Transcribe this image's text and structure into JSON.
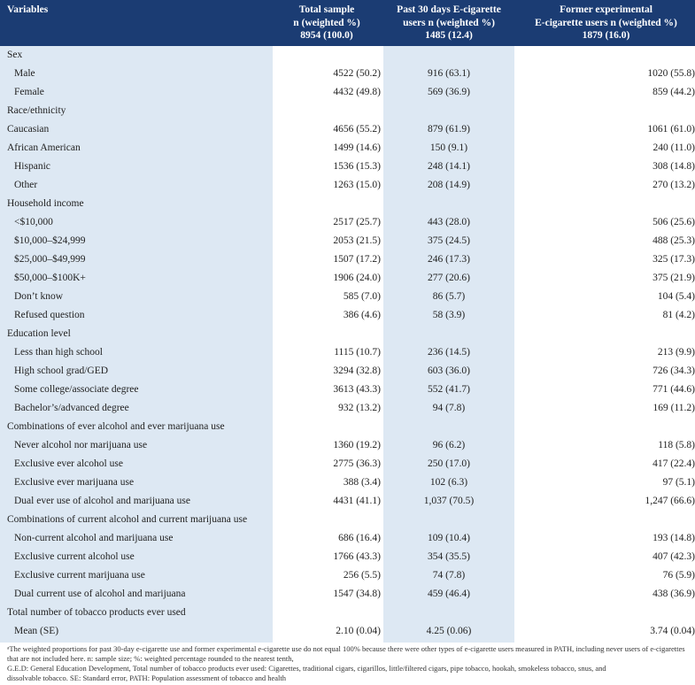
{
  "header": {
    "variables": "Variables",
    "total": [
      "Total sample",
      "n (weighted %)",
      "8954 (100.0)"
    ],
    "past30": [
      "Past 30 days E-cigarette",
      "users n (weighted %)",
      "1485 (12.4)"
    ],
    "former": [
      "Former experimental",
      "E-cigarette users n (weighted %)",
      "1879 (16.0)"
    ]
  },
  "rows": [
    {
      "label": "Sex",
      "indent": false,
      "v": [
        "",
        "",
        ""
      ]
    },
    {
      "label": "Male",
      "indent": true,
      "v": [
        "4522 (50.2)",
        "916 (63.1)",
        "1020 (55.8)"
      ]
    },
    {
      "label": "Female",
      "indent": true,
      "v": [
        "4432 (49.8)",
        "569 (36.9)",
        "859 (44.2)"
      ]
    },
    {
      "label": "Race/ethnicity",
      "indent": false,
      "v": [
        "",
        "",
        ""
      ]
    },
    {
      "label": "Caucasian",
      "indent": false,
      "v": [
        "4656 (55.2)",
        "879 (61.9)",
        "1061 (61.0)"
      ]
    },
    {
      "label": "African American",
      "indent": false,
      "v": [
        "1499 (14.6)",
        "150 (9.1)",
        "240 (11.0)"
      ]
    },
    {
      "label": "Hispanic",
      "indent": true,
      "v": [
        "1536 (15.3)",
        "248 (14.1)",
        "308 (14.8)"
      ]
    },
    {
      "label": "Other",
      "indent": true,
      "v": [
        "1263 (15.0)",
        "208 (14.9)",
        "270 (13.2)"
      ]
    },
    {
      "label": "Household income",
      "indent": false,
      "v": [
        "",
        "",
        ""
      ]
    },
    {
      "label": "<$10,000",
      "indent": true,
      "v": [
        "2517 (25.7)",
        "443 (28.0)",
        "506 (25.6)"
      ]
    },
    {
      "label": "$10,000–$24,999",
      "indent": true,
      "v": [
        "2053 (21.5)",
        "375 (24.5)",
        "488 (25.3)"
      ]
    },
    {
      "label": "$25,000–$49,999",
      "indent": true,
      "v": [
        "1507 (17.2)",
        "246 (17.3)",
        "325 (17.3)"
      ]
    },
    {
      "label": "$50,000–$100K+",
      "indent": true,
      "v": [
        "1906 (24.0)",
        "277 (20.6)",
        "375 (21.9)"
      ]
    },
    {
      "label": "Don’t know",
      "indent": true,
      "v": [
        "585 (7.0)",
        "86 (5.7)",
        "104 (5.4)"
      ]
    },
    {
      "label": "Refused question",
      "indent": true,
      "v": [
        "386 (4.6)",
        "58 (3.9)",
        "81 (4.2)"
      ]
    },
    {
      "label": "Education level",
      "indent": false,
      "v": [
        "",
        "",
        ""
      ]
    },
    {
      "label": "Less than high school",
      "indent": true,
      "v": [
        "1115 (10.7)",
        "236 (14.5)",
        "213 (9.9)"
      ]
    },
    {
      "label": "High school grad/GED",
      "indent": true,
      "v": [
        "3294 (32.8)",
        "603 (36.0)",
        "726 (34.3)"
      ]
    },
    {
      "label": "Some college/associate degree",
      "indent": true,
      "v": [
        "3613 (43.3)",
        "552 (41.7)",
        "771 (44.6)"
      ]
    },
    {
      "label": "Bachelor’s/advanced degree",
      "indent": true,
      "v": [
        "932 (13.2)",
        "94 (7.8)",
        "169 (11.2)"
      ]
    },
    {
      "label": "Combinations of ever alcohol and ever marijuana use",
      "indent": false,
      "v": [
        "",
        "",
        ""
      ]
    },
    {
      "label": "Never alcohol nor marijuana use",
      "indent": true,
      "v": [
        "1360 (19.2)",
        "96 (6.2)",
        "118 (5.8)"
      ]
    },
    {
      "label": "Exclusive ever alcohol use",
      "indent": true,
      "v": [
        "2775 (36.3)",
        "250 (17.0)",
        "417 (22.4)"
      ]
    },
    {
      "label": "Exclusive ever marijuana use",
      "indent": true,
      "v": [
        "388 (3.4)",
        "102 (6.3)",
        "97 (5.1)"
      ]
    },
    {
      "label": "Dual ever use of alcohol and marijuana use",
      "indent": true,
      "v": [
        "4431 (41.1)",
        "1,037 (70.5)",
        "1,247 (66.6)"
      ]
    },
    {
      "label": "Combinations of current alcohol and current marijuana use",
      "indent": false,
      "v": [
        "",
        "",
        ""
      ]
    },
    {
      "label": "Non-current alcohol and marijuana use",
      "indent": true,
      "v": [
        "686 (16.4)",
        "109 (10.4)",
        "193 (14.8)"
      ]
    },
    {
      "label": "Exclusive current alcohol use",
      "indent": true,
      "v": [
        "1766 (43.3)",
        "354 (35.5)",
        "407 (42.3)"
      ]
    },
    {
      "label": "Exclusive current marijuana use",
      "indent": true,
      "v": [
        "256 (5.5)",
        "74 (7.8)",
        "76 (5.9)"
      ]
    },
    {
      "label": "Dual current use of alcohol and marijuana",
      "indent": true,
      "v": [
        "1547 (34.8)",
        "459 (46.4)",
        "438 (36.9)"
      ]
    },
    {
      "label": "Total number of tobacco products ever used",
      "indent": false,
      "v": [
        "",
        "",
        ""
      ]
    },
    {
      "label": "Mean (SE)",
      "indent": true,
      "v": [
        "2.10 (0.04)",
        "4.25 (0.06)",
        "3.74 (0.04)"
      ]
    }
  ],
  "notes": [
    "ᵃThe weighted proportions for past 30-day e-cigarette use and former experimental e-cigarette use do not equal 100% because there were other types of e-cigarette users measured in PATH, including never users of e-cigarettes that are not included here. n: sample size; %: weighted percentage rounded to the nearest tenth,",
    "G.E.D: General Education Development, Total number of tobacco products ever used: Cigarettes, traditional cigars, cigarillos, little/filtered cigars, pipe tobacco, hookah, smokeless tobacco, snus, and",
    "dissolvable tobacco. SE: Standard error, PATH: Population assessment of tobacco and health",
    ""
  ]
}
